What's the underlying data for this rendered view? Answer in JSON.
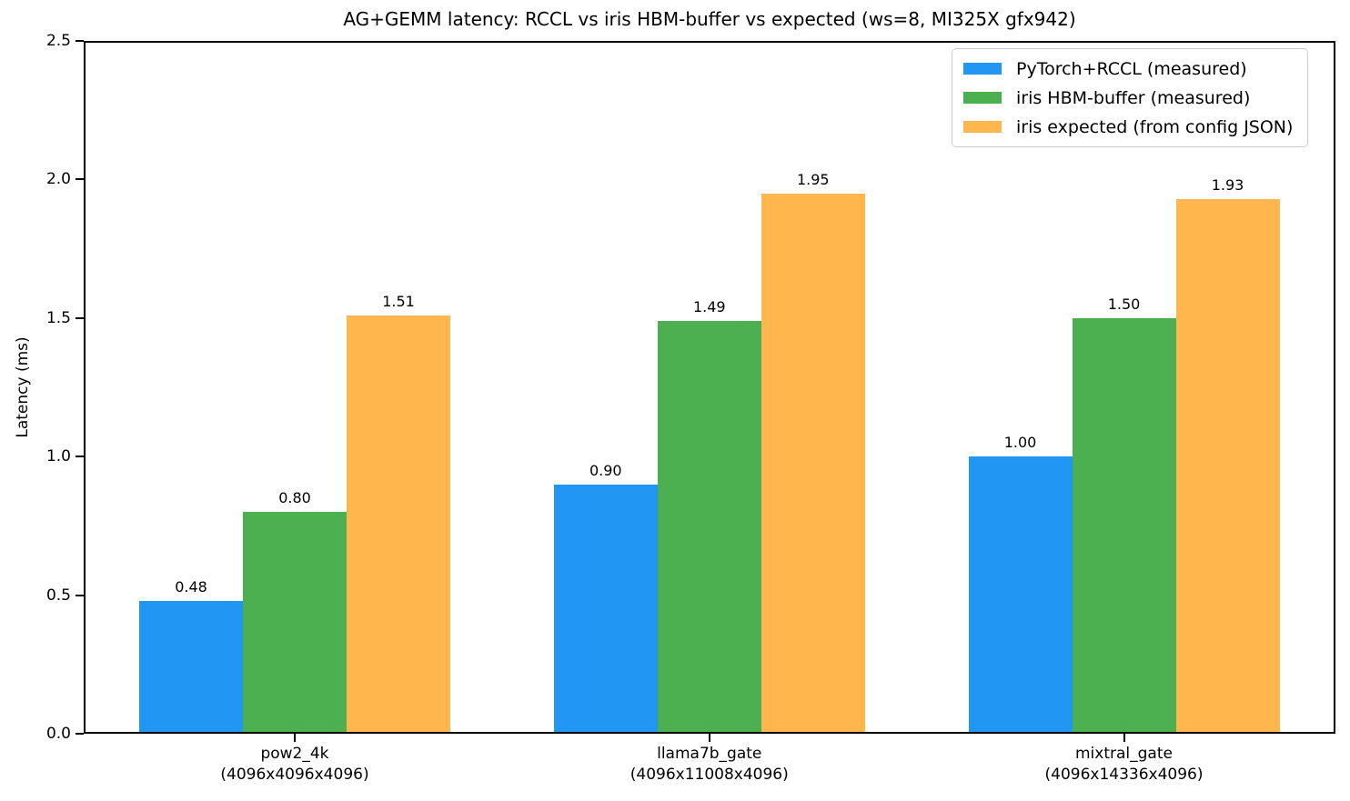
{
  "chart_data": {
    "type": "bar",
    "title": "AG+GEMM latency: RCCL vs iris HBM-buffer vs expected (ws=8, MI325X gfx942)",
    "ylabel": "Latency (ms)",
    "xlabel": "",
    "ylim": [
      0.0,
      2.5
    ],
    "yticks": [
      "0.0",
      "0.5",
      "1.0",
      "1.5",
      "2.0",
      "2.5"
    ],
    "grid": false,
    "legend_position": "upper right",
    "categories": [
      {
        "name": "pow2_4k",
        "shape": "(4096x4096x4096)"
      },
      {
        "name": "llama7b_gate",
        "shape": "(4096x11008x4096)"
      },
      {
        "name": "mixtral_gate",
        "shape": "(4096x14336x4096)"
      }
    ],
    "series": [
      {
        "name": "PyTorch+RCCL (measured)",
        "color": "#2196F3",
        "values": [
          0.48,
          0.9,
          1.0
        ]
      },
      {
        "name": "iris HBM-buffer (measured)",
        "color": "#4CAF50",
        "values": [
          0.8,
          1.49,
          1.5
        ]
      },
      {
        "name": "iris expected (from config JSON)",
        "color": "#FFB74D",
        "values": [
          1.51,
          1.95,
          1.93
        ]
      }
    ],
    "bar_value_labels": [
      [
        "0.48",
        "0.90",
        "1.00"
      ],
      [
        "0.80",
        "1.49",
        "1.50"
      ],
      [
        "1.51",
        "1.95",
        "1.93"
      ]
    ]
  },
  "colors": {
    "background": "#ffffff",
    "spine": "#000000",
    "text": "#000000",
    "legend_border": "#cccccc"
  }
}
